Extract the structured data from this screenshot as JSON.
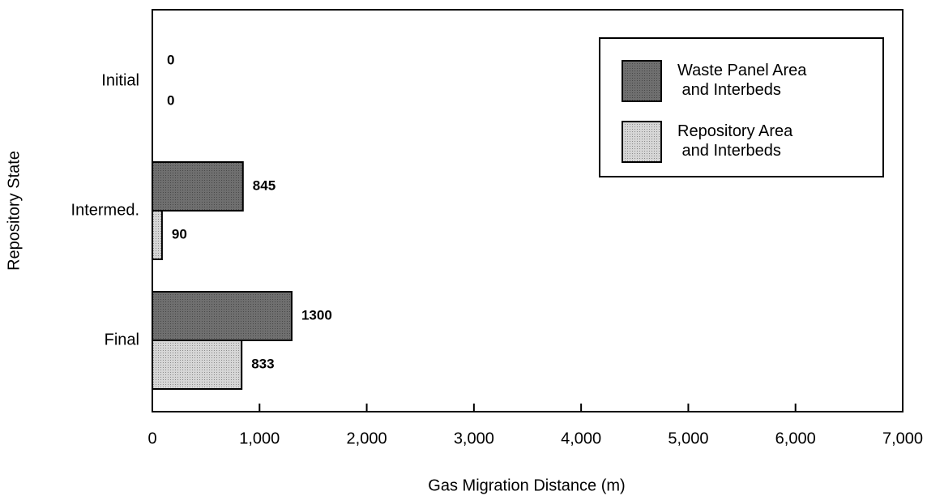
{
  "chart_data": {
    "type": "bar",
    "orientation": "horizontal",
    "x_label": "Gas Migration Distance (m)",
    "y_label": "Repository State",
    "categories": [
      "Initial",
      "Intermed.",
      "Final"
    ],
    "series": [
      {
        "name": "Waste Panel Area and Interbeds",
        "color": "#6f6f6f",
        "values": [
          0,
          845,
          1300
        ]
      },
      {
        "name": "Repository Area and Interbeds",
        "color": "#d6d6d6",
        "values": [
          0,
          90,
          833
        ]
      }
    ],
    "xlim": [
      0,
      7000
    ],
    "xticks": [
      0,
      {
        "value": 1000,
        "label": "1,000"
      },
      {
        "value": 2000,
        "label": "2,000"
      },
      {
        "value": 3000,
        "label": "3,000"
      },
      {
        "value": 4000,
        "label": "4,000"
      },
      {
        "value": 5000,
        "label": "5,000"
      },
      {
        "value": 6000,
        "label": "6,000"
      },
      {
        "value": 7000,
        "label": "7,000"
      }
    ],
    "legend": "upper right"
  }
}
